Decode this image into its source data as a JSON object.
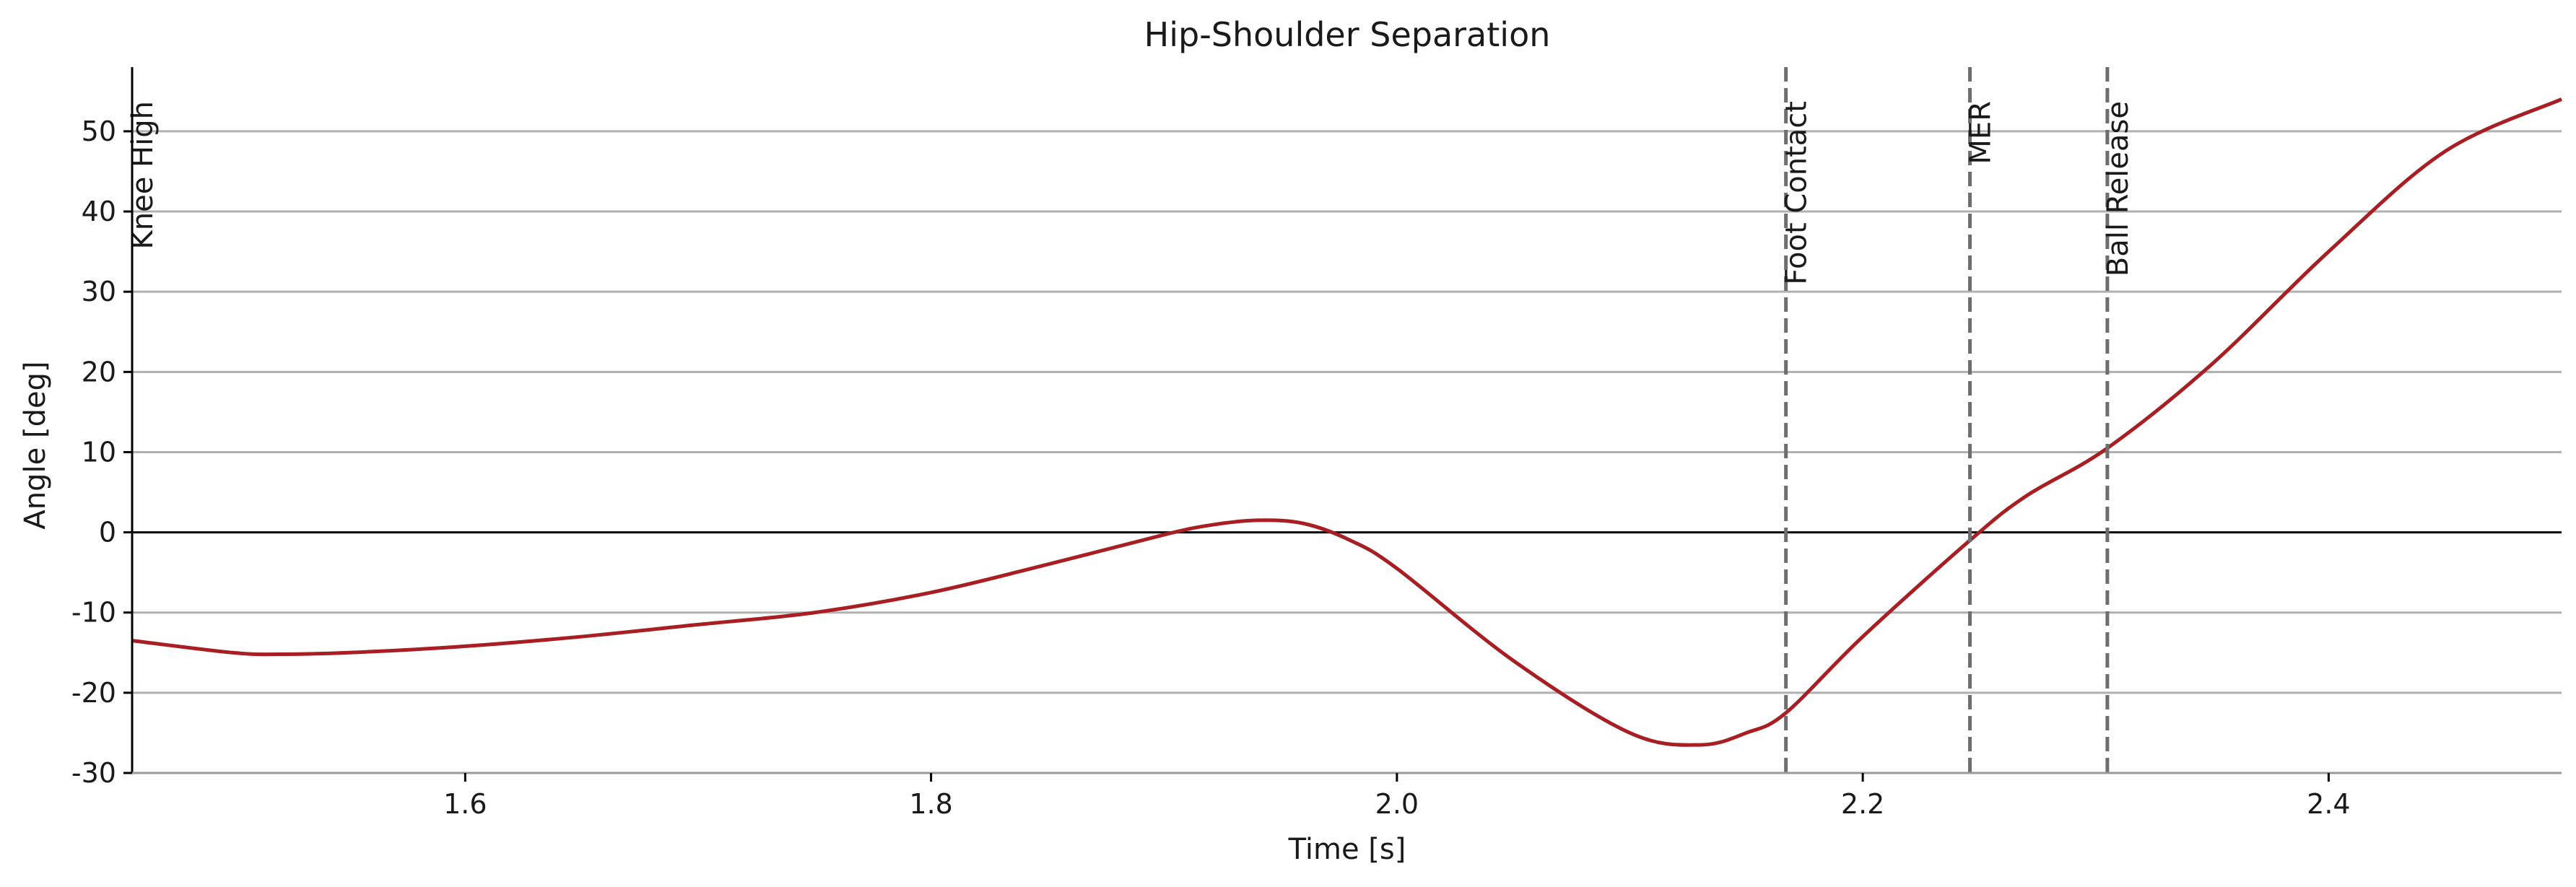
{
  "chart_data": {
    "type": "line",
    "title": "Hip-Shoulder Separation",
    "xlabel": "Time [s]",
    "ylabel": "Angle [deg]",
    "xlim": [
      1.457,
      2.5
    ],
    "ylim": [
      -30,
      58
    ],
    "grid": "horizontal",
    "xticks": [
      1.6,
      1.8,
      2.0,
      2.2,
      2.4
    ],
    "xtick_labels": [
      "1.6",
      "1.8",
      "2.0",
      "2.2",
      "2.4"
    ],
    "yticks": [
      -30,
      -20,
      -10,
      0,
      10,
      20,
      30,
      40,
      50
    ],
    "ytick_labels": [
      "-30",
      "-20",
      "-10",
      "0",
      "10",
      "20",
      "30",
      "40",
      "50"
    ],
    "zero_line": true,
    "line_color": "#a81e22",
    "event_color": "#6e6e6e",
    "events": [
      {
        "name": "Knee High",
        "x": 1.457
      },
      {
        "name": "Foot Contact",
        "x": 2.167
      },
      {
        "name": "MER",
        "x": 2.246
      },
      {
        "name": "Ball Release",
        "x": 2.305
      }
    ],
    "series": [
      {
        "x": [
          1.457,
          1.5,
          1.52,
          1.55,
          1.6,
          1.65,
          1.7,
          1.75,
          1.8,
          1.85,
          1.9,
          1.92,
          1.94,
          1.96,
          1.98,
          2.0,
          2.05,
          2.1,
          2.13,
          2.15,
          2.167,
          2.2,
          2.246,
          2.27,
          2.305,
          2.35,
          2.4,
          2.45,
          2.5
        ],
        "y": [
          -13.5,
          -15.0,
          -15.2,
          -15.0,
          -14.2,
          -13.0,
          -11.5,
          -10.0,
          -7.5,
          -4.0,
          -0.3,
          0.9,
          1.5,
          1.1,
          -1.0,
          -4.5,
          -16.0,
          -25.0,
          -26.5,
          -25.0,
          -22.5,
          -13.0,
          -1.0,
          4.5,
          10.5,
          21.0,
          35.0,
          47.5,
          54.0
        ]
      }
    ]
  }
}
